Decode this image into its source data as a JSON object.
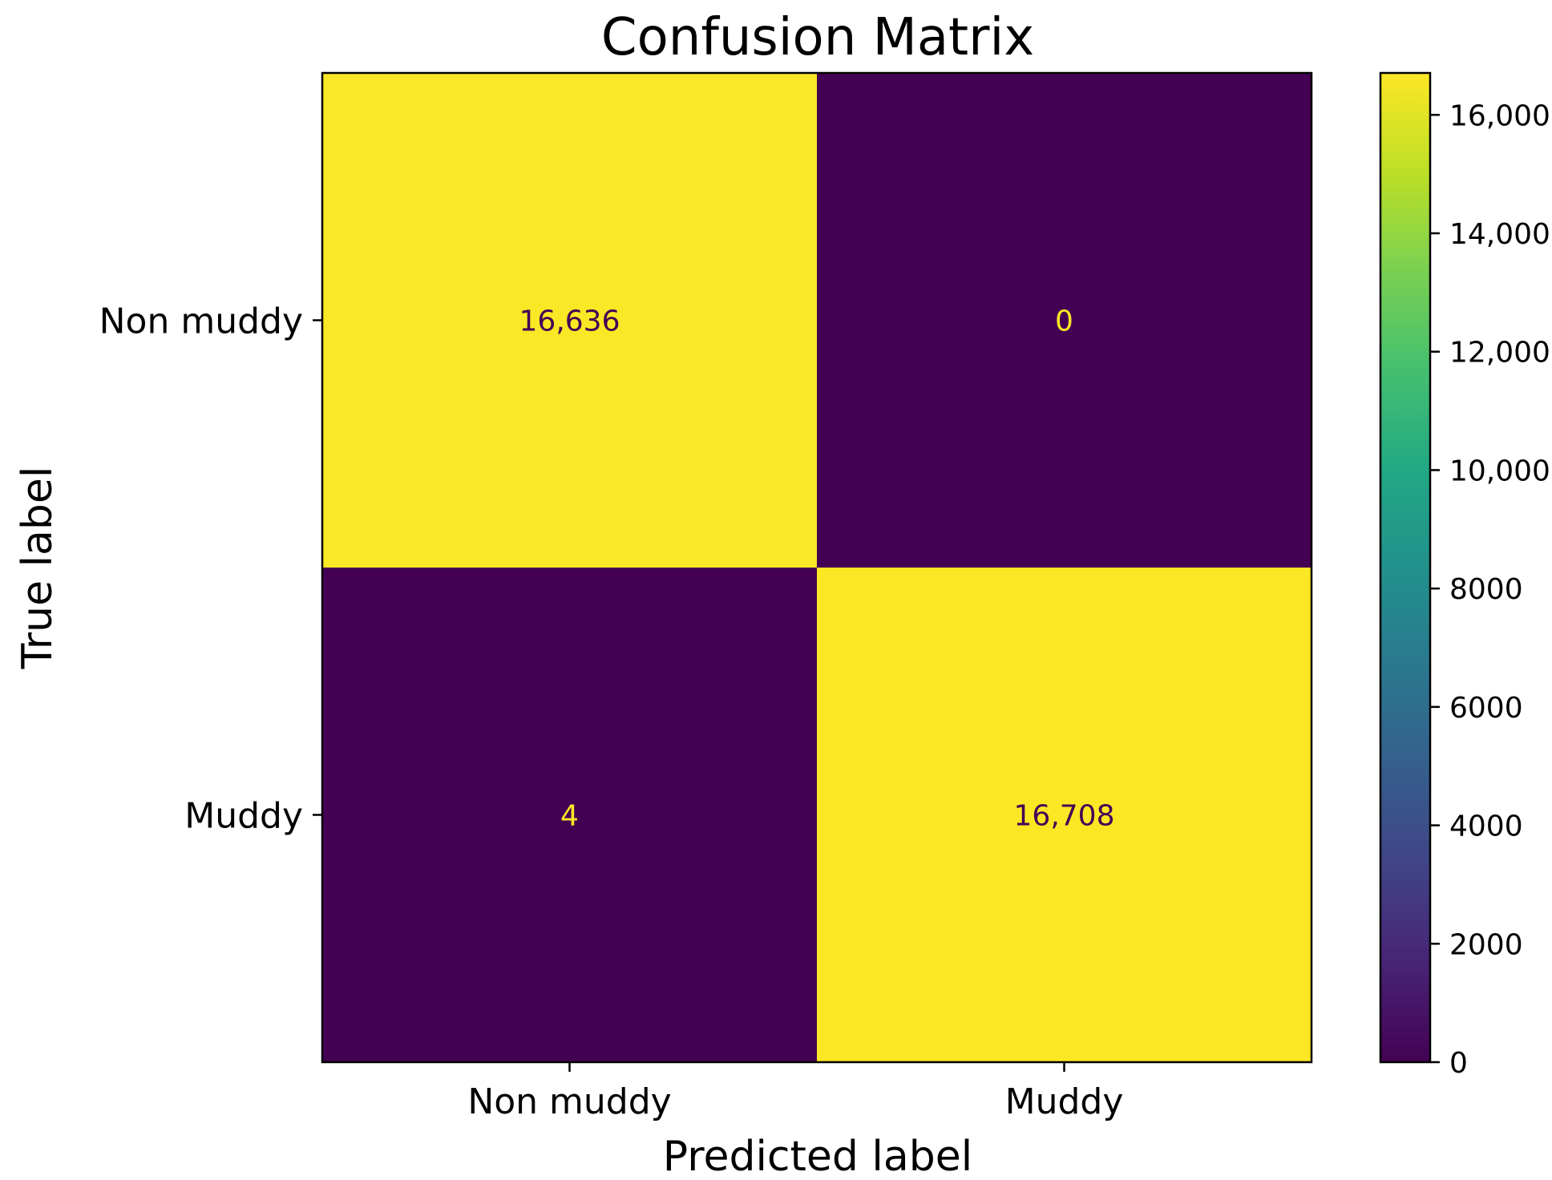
{
  "chart_data": {
    "type": "heatmap",
    "title": "Confusion Matrix",
    "xlabel": "Predicted label",
    "ylabel": "True label",
    "x_categories": [
      "Non muddy",
      "Muddy"
    ],
    "y_categories": [
      "Non muddy",
      "Muddy"
    ],
    "values": [
      [
        16636,
        0
      ],
      [
        4,
        16708
      ]
    ],
    "value_labels": [
      [
        "16,636",
        "0"
      ],
      [
        "4",
        "16,708"
      ]
    ],
    "colormap": "viridis",
    "colorbar": {
      "min": 0,
      "max": 16708,
      "ticks": [
        0,
        2000,
        4000,
        6000,
        8000,
        10000,
        12000,
        14000,
        16000
      ],
      "tick_labels": [
        "0",
        "2000",
        "4000",
        "6000",
        "8000",
        "10,000",
        "12,000",
        "14,000",
        "16,000"
      ]
    },
    "colors": {
      "low": "#440154",
      "high": "#fde725",
      "text_on_dark": "#fde725",
      "text_on_light": "#440154"
    }
  }
}
